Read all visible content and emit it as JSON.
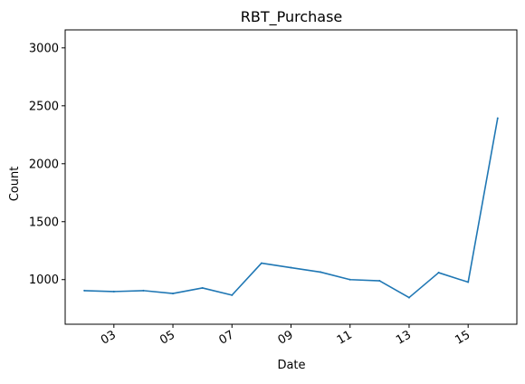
{
  "chart_data": {
    "type": "line",
    "title": "RBT_Purchase",
    "xlabel": "Date",
    "ylabel": "Count",
    "x": [
      2,
      3,
      4,
      5,
      6,
      7,
      8,
      9,
      10,
      11,
      12,
      13,
      14,
      15,
      16
    ],
    "series": [
      {
        "values": [
          905,
          897,
          905,
          880,
          928,
          866,
          1142,
          1103,
          1065,
          1000,
          990,
          845,
          1060,
          978,
          2393
        ]
      }
    ],
    "xticks": [
      3,
      5,
      7,
      9,
      11,
      13,
      15
    ],
    "xtick_labels": [
      "03",
      "05",
      "07",
      "09",
      "11",
      "13",
      "15"
    ],
    "yticks": [
      1000,
      1500,
      2000,
      2500,
      3000
    ],
    "ytick_labels": [
      "1000",
      "1500",
      "2000",
      "2500",
      "3000"
    ],
    "xlim": [
      1.35,
      16.65
    ],
    "ylim": [
      615,
      3155
    ],
    "grid": false,
    "line_color": "#1f77b4"
  }
}
